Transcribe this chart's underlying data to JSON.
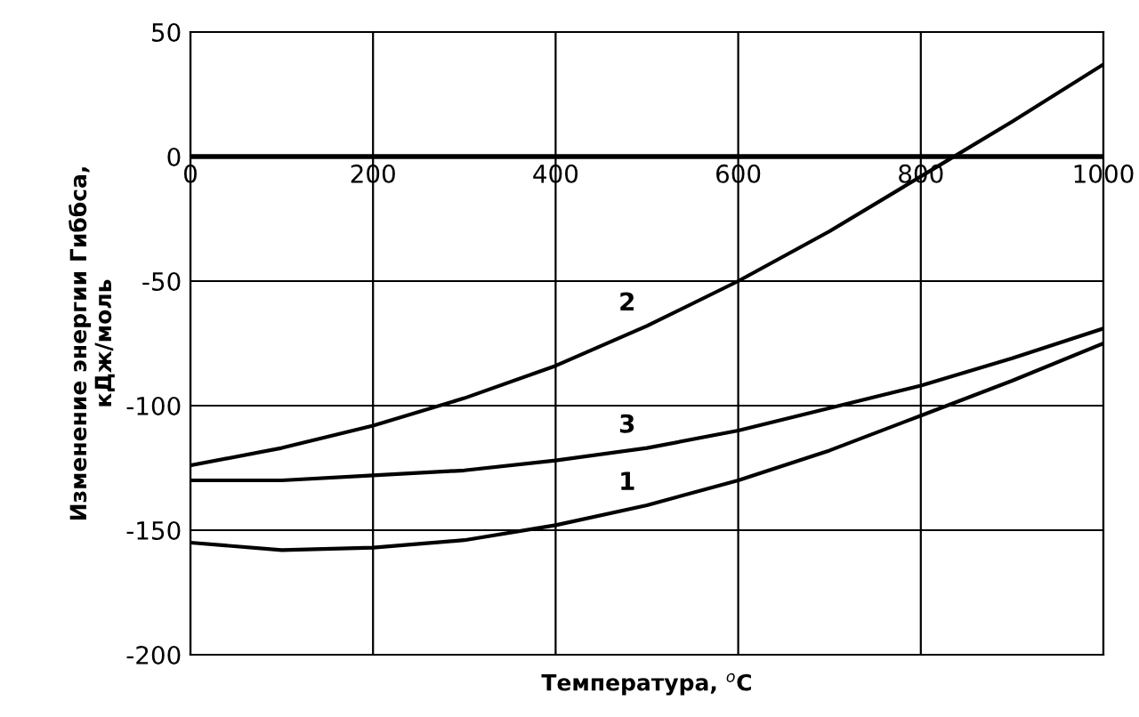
{
  "chart_data": {
    "type": "line",
    "xlabel": "Температура, $^{о}$С",
    "ylabel": "Изменение энергии Гиббса,\nкДж/моль",
    "x": [
      0,
      100,
      200,
      300,
      400,
      500,
      600,
      700,
      800,
      900,
      1000
    ],
    "series": [
      {
        "name": "1",
        "color": "#000000",
        "values": [
          -155,
          -158,
          -157,
          -154,
          -148,
          -140,
          -130,
          -118,
          -104,
          -90,
          -75
        ]
      },
      {
        "name": "2",
        "color": "#000000",
        "values": [
          -124,
          -117,
          -108,
          -97,
          -84,
          -68,
          -50,
          -30,
          -8,
          14,
          37
        ]
      },
      {
        "name": "3",
        "color": "#000000",
        "values": [
          -130,
          -130,
          -128,
          -126,
          -122,
          -117,
          -110,
          -101,
          -92,
          -81,
          -69
        ]
      }
    ],
    "xlim": [
      0,
      1000
    ],
    "xticks": [
      0,
      200,
      400,
      600,
      800,
      1000
    ],
    "ylim": [
      -200,
      50
    ],
    "yticks": [
      -200,
      -150,
      -100,
      -50,
      0,
      50
    ],
    "grid": true,
    "marker": "none",
    "line_style": "solid",
    "legend": false
  }
}
